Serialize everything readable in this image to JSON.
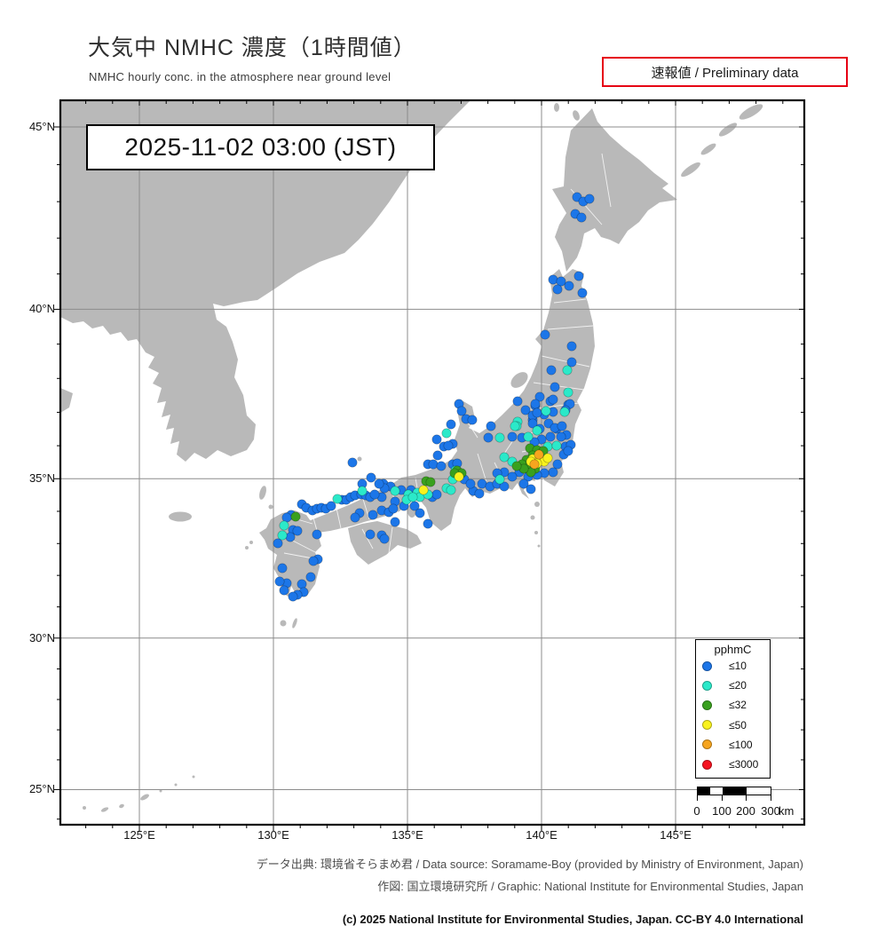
{
  "header": {
    "title": "大気中 NMHC 濃度（1時間値）",
    "subtitle": "NMHC hourly conc. in the atmosphere near ground level",
    "badge": "速報値 / Preliminary data"
  },
  "map": {
    "timestamp": "2025-11-02  03:00 (JST)"
  },
  "axes": {
    "lat": {
      "values": [
        45,
        40,
        35,
        30,
        25
      ],
      "labels": [
        "45°N",
        "40°N",
        "35°N",
        "30°N",
        "25°N"
      ]
    },
    "lon": {
      "values": [
        125,
        130,
        135,
        140,
        145
      ],
      "labels": [
        "125°E",
        "130°E",
        "135°E",
        "140°E",
        "145°E"
      ]
    }
  },
  "legend": {
    "title": "pphmC",
    "entries": [
      {
        "label": "≤10",
        "color": "#1c76e8"
      },
      {
        "label": "≤20",
        "color": "#2be9c9"
      },
      {
        "label": "≤32",
        "color": "#39a01e"
      },
      {
        "label": "≤50",
        "color": "#f9f21e"
      },
      {
        "label": "≤100",
        "color": "#f6a51f"
      },
      {
        "label": "≤3000",
        "color": "#f5121f"
      }
    ]
  },
  "scalebar": {
    "labels": [
      "0",
      "100",
      "200",
      "300"
    ],
    "unit": "km"
  },
  "footer": {
    "line1": "データ出典: 環境省そらまめ君 / Data source: Soramame-Boy (provided by Ministry of Environment, Japan)",
    "line2": "作図: 国立環境研究所 / Graphic: National Institute for Environmental Studies, Japan",
    "copyright": "(c) 2025 National Institute for Environmental Studies, Japan. CC-BY 4.0 International"
  },
  "chart_data": {
    "type": "scatter",
    "units": "pphmC",
    "level_labels": [
      "≤10",
      "≤20",
      "≤32",
      "≤50",
      "≤100",
      "≤3000"
    ],
    "stations": [
      [
        582,
        109,
        0
      ],
      [
        589,
        114,
        0
      ],
      [
        596,
        111,
        0
      ],
      [
        580,
        128,
        0
      ],
      [
        587,
        132,
        0
      ],
      [
        555,
        202,
        0
      ],
      [
        564,
        204,
        0
      ],
      [
        560,
        213,
        0
      ],
      [
        573,
        209,
        0
      ],
      [
        584,
        198,
        0
      ],
      [
        588,
        217,
        0
      ],
      [
        576,
        277,
        0
      ],
      [
        576,
        295,
        0
      ],
      [
        553,
        304,
        0
      ],
      [
        557,
        323,
        0
      ],
      [
        540,
        334,
        0
      ],
      [
        535,
        344,
        0
      ],
      [
        552,
        339,
        0
      ],
      [
        555,
        351,
        0
      ],
      [
        572,
        343,
        0
      ],
      [
        545,
        354,
        0
      ],
      [
        532,
        360,
        0
      ],
      [
        546,
        264,
        0
      ],
      [
        515,
        339,
        0
      ],
      [
        524,
        349,
        0
      ],
      [
        532,
        355,
        0
      ],
      [
        449,
        342,
        0
      ],
      [
        452,
        350,
        0
      ],
      [
        457,
        359,
        0
      ],
      [
        464,
        360,
        0
      ],
      [
        440,
        365,
        0
      ],
      [
        442,
        387,
        0
      ],
      [
        485,
        367,
        0
      ],
      [
        482,
        380,
        0
      ],
      [
        535,
        342,
        0
      ],
      [
        555,
        337,
        0
      ],
      [
        574,
        342,
        0
      ],
      [
        537,
        352,
        0
      ],
      [
        569,
        349,
        0
      ],
      [
        550,
        364,
        0
      ],
      [
        559,
        370,
        0
      ],
      [
        509,
        379,
        0
      ],
      [
        520,
        380,
        0
      ],
      [
        569,
        390,
        0
      ],
      [
        575,
        388,
        0
      ],
      [
        532,
        364,
        0
      ],
      [
        540,
        370,
        0
      ],
      [
        557,
        369,
        0
      ],
      [
        565,
        367,
        0
      ],
      [
        570,
        377,
        0
      ],
      [
        564,
        379,
        0
      ],
      [
        552,
        379,
        0
      ],
      [
        542,
        382,
        0
      ],
      [
        534,
        385,
        0
      ],
      [
        567,
        399,
        0
      ],
      [
        572,
        395,
        0
      ],
      [
        560,
        410,
        0
      ],
      [
        555,
        419,
        0
      ],
      [
        545,
        420,
        0
      ],
      [
        537,
        422,
        0
      ],
      [
        527,
        424,
        0
      ],
      [
        517,
        419,
        0
      ],
      [
        500,
        419,
        0
      ],
      [
        492,
        420,
        0
      ],
      [
        509,
        424,
        0
      ],
      [
        522,
        432,
        0
      ],
      [
        530,
        438,
        0
      ],
      [
        475,
        432,
        0
      ],
      [
        484,
        435,
        0
      ],
      [
        492,
        432,
        0
      ],
      [
        465,
        440,
        0
      ],
      [
        472,
        443,
        0
      ],
      [
        500,
        435,
        0
      ],
      [
        424,
        382,
        0
      ],
      [
        432,
        390,
        0
      ],
      [
        437,
        389,
        0
      ],
      [
        425,
        400,
        0
      ],
      [
        414,
        410,
        0
      ],
      [
        420,
        410,
        0
      ],
      [
        429,
        412,
        0
      ],
      [
        442,
        410,
        0
      ],
      [
        447,
        409,
        0
      ],
      [
        455,
        427,
        0
      ],
      [
        462,
        432,
        0
      ],
      [
        419,
        447,
        0
      ],
      [
        424,
        444,
        0
      ],
      [
        364,
        432,
        0
      ],
      [
        372,
        435,
        0
      ],
      [
        384,
        439,
        0
      ],
      [
        395,
        439,
        0
      ],
      [
        377,
        452,
        0
      ],
      [
        387,
        457,
        0
      ],
      [
        399,
        457,
        0
      ],
      [
        405,
        465,
        0
      ],
      [
        414,
        477,
        0
      ],
      [
        362,
        447,
        0
      ],
      [
        329,
        408,
        0
      ],
      [
        350,
        425,
        0
      ],
      [
        340,
        432,
        0
      ],
      [
        272,
        455,
        0
      ],
      [
        277,
        459,
        0
      ],
      [
        284,
        462,
        0
      ],
      [
        289,
        460,
        0
      ],
      [
        294,
        459,
        0
      ],
      [
        299,
        460,
        0
      ],
      [
        305,
        457,
        0
      ],
      [
        317,
        450,
        0
      ],
      [
        322,
        450,
        0
      ],
      [
        327,
        447,
        0
      ],
      [
        332,
        445,
        0
      ],
      [
        339,
        444,
        0
      ],
      [
        344,
        445,
        0
      ],
      [
        349,
        447,
        0
      ],
      [
        354,
        444,
        0
      ],
      [
        365,
        437,
        0
      ],
      [
        359,
        432,
        0
      ],
      [
        337,
        465,
        0
      ],
      [
        352,
        467,
        0
      ],
      [
        362,
        462,
        0
      ],
      [
        370,
        464,
        0
      ],
      [
        375,
        460,
        0
      ],
      [
        332,
        470,
        0
      ],
      [
        349,
        489,
        0
      ],
      [
        362,
        490,
        0
      ],
      [
        365,
        494,
        0
      ],
      [
        377,
        475,
        0
      ],
      [
        260,
        467,
        0
      ],
      [
        255,
        470,
        0
      ],
      [
        262,
        484,
        0
      ],
      [
        267,
        485,
        0
      ],
      [
        259,
        492,
        0
      ],
      [
        289,
        489,
        0
      ],
      [
        290,
        517,
        0
      ],
      [
        285,
        519,
        0
      ],
      [
        282,
        537,
        0
      ],
      [
        272,
        545,
        0
      ],
      [
        274,
        554,
        0
      ],
      [
        267,
        557,
        0
      ],
      [
        262,
        559,
        0
      ],
      [
        255,
        544,
        0
      ],
      [
        247,
        542,
        0
      ],
      [
        252,
        552,
        0
      ],
      [
        245,
        499,
        0
      ],
      [
        250,
        527,
        0
      ],
      [
        571,
        304,
        1
      ],
      [
        572,
        329,
        1
      ],
      [
        568,
        351,
        1
      ],
      [
        515,
        362,
        1
      ],
      [
        547,
        350,
        1
      ],
      [
        514,
        367,
        1
      ],
      [
        435,
        375,
        1
      ],
      [
        512,
        367,
        1
      ],
      [
        495,
        380,
        1
      ],
      [
        527,
        379,
        1
      ],
      [
        537,
        372,
        1
      ],
      [
        549,
        390,
        1
      ],
      [
        559,
        389,
        1
      ],
      [
        500,
        402,
        1
      ],
      [
        509,
        407,
        1
      ],
      [
        495,
        427,
        1
      ],
      [
        445,
        417,
        1
      ],
      [
        435,
        437,
        1
      ],
      [
        440,
        439,
        1
      ],
      [
        442,
        427,
        1
      ],
      [
        377,
        440,
        1
      ],
      [
        392,
        444,
        1
      ],
      [
        402,
        442,
        1
      ],
      [
        405,
        447,
        1
      ],
      [
        414,
        444,
        1
      ],
      [
        390,
        450,
        1
      ],
      [
        397,
        447,
        1
      ],
      [
        340,
        440,
        1
      ],
      [
        312,
        449,
        1
      ],
      [
        252,
        479,
        1
      ],
      [
        250,
        490,
        1
      ],
      [
        529,
        392,
        2
      ],
      [
        537,
        394,
        2
      ],
      [
        544,
        395,
        2
      ],
      [
        532,
        400,
        2
      ],
      [
        525,
        405,
        2
      ],
      [
        520,
        410,
        2
      ],
      [
        527,
        414,
        2
      ],
      [
        535,
        415,
        2
      ],
      [
        530,
        419,
        2
      ],
      [
        522,
        415,
        2
      ],
      [
        514,
        412,
        2
      ],
      [
        447,
        417,
        2
      ],
      [
        452,
        420,
        2
      ],
      [
        444,
        420,
        2
      ],
      [
        412,
        429,
        2
      ],
      [
        417,
        430,
        2
      ],
      [
        265,
        469,
        2
      ],
      [
        532,
        404,
        3
      ],
      [
        540,
        404,
        3
      ],
      [
        545,
        407,
        3
      ],
      [
        549,
        403,
        3
      ],
      [
        537,
        409,
        3
      ],
      [
        530,
        407,
        3
      ],
      [
        449,
        424,
        3
      ],
      [
        409,
        439,
        3
      ],
      [
        539,
        399,
        4
      ],
      [
        534,
        410,
        4
      ]
    ]
  }
}
